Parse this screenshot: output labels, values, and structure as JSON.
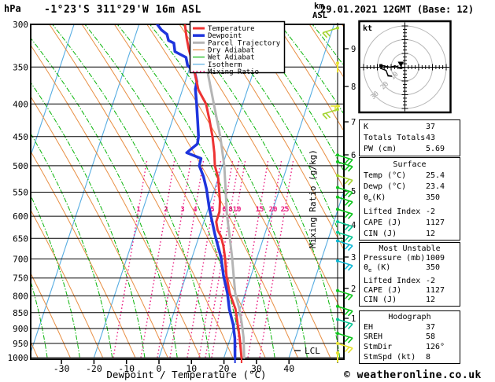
{
  "header": {
    "pressure_unit": "hPa",
    "station_title": "-1°23'S 311°29'W 16m ASL",
    "run_title": "29.01.2021 12GMT (Base: 12)",
    "km_axis_label_line1": "km",
    "km_axis_label_line2": "ASL"
  },
  "legend": {
    "items": [
      {
        "label": "Temperature",
        "color": "#ee3333",
        "width": 3,
        "dash": ""
      },
      {
        "label": "Dewpoint",
        "color": "#1f35dd",
        "width": 3.5,
        "dash": ""
      },
      {
        "label": "Parcel Trajectory",
        "color": "#b5b5b5",
        "width": 3,
        "dash": ""
      },
      {
        "label": "Dry Adiabat",
        "color": "#e88f44",
        "width": 1.2,
        "dash": ""
      },
      {
        "label": "Wet Adiabat",
        "color": "#0ab50a",
        "width": 1.2,
        "dash": ""
      },
      {
        "label": "Isotherm",
        "color": "#57ade2",
        "width": 1.2,
        "dash": ""
      },
      {
        "label": "Mixing Ratio",
        "color": "#ea1a7f",
        "width": 1.6,
        "dash": "1.5 3"
      }
    ]
  },
  "axes": {
    "pressure_ticks": [
      300,
      350,
      400,
      450,
      500,
      550,
      600,
      650,
      700,
      750,
      800,
      850,
      900,
      950,
      1000
    ],
    "temp_ticks": [
      -30,
      -20,
      -10,
      0,
      10,
      20,
      30,
      40
    ],
    "x_axis_label": "Dewpoint / Temperature (°C)",
    "km_ticks": [
      9,
      8,
      7,
      6,
      5,
      4,
      3,
      2,
      1
    ],
    "lcl_label": "LCL",
    "mixing_axis_label": "Mixing Ratio (g/kg)",
    "mixing_ratio_values": [
      1,
      2,
      3,
      4,
      5,
      6,
      8,
      10,
      15,
      20,
      25
    ],
    "hodograph_unit": "kt"
  },
  "chart_data": {
    "type": "skew-t-log-p-sounding",
    "pressure_range_hPa": [
      300,
      1000
    ],
    "temp_label_range_C": [
      -30,
      40
    ],
    "grid": "isobars every 50 hPa, skewed isotherms, dry/wet adiabats, mixing-ratio lines",
    "series": [
      {
        "name": "Temperature",
        "color": "#ee3333",
        "width": 3,
        "points_p_t": [
          [
            300,
            -25.9
          ],
          [
            315,
            -24.0
          ],
          [
            328,
            -22.2
          ],
          [
            345,
            -19.6
          ],
          [
            360,
            -17.6
          ],
          [
            380,
            -15.1
          ],
          [
            400,
            -11.3
          ],
          [
            423,
            -8.7
          ],
          [
            450,
            -6.0
          ],
          [
            477,
            -3.8
          ],
          [
            500,
            -2.3
          ],
          [
            523,
            0.0
          ],
          [
            548,
            1.6
          ],
          [
            569,
            2.9
          ],
          [
            591,
            3.8
          ],
          [
            612,
            3.8
          ],
          [
            631,
            5.1
          ],
          [
            645,
            6.7
          ],
          [
            667,
            8.4
          ],
          [
            694,
            10.0
          ],
          [
            745,
            12.5
          ],
          [
            792,
            15.2
          ],
          [
            839,
            18.6
          ],
          [
            888,
            20.9
          ],
          [
            933,
            22.9
          ],
          [
            1000,
            25.4
          ]
        ]
      },
      {
        "name": "Dewpoint",
        "color": "#1f35dd",
        "width": 3.5,
        "points_p_t": [
          [
            300,
            -34.4
          ],
          [
            306,
            -32.6
          ],
          [
            311,
            -30.4
          ],
          [
            318,
            -29.3
          ],
          [
            321,
            -27.4
          ],
          [
            331,
            -26.2
          ],
          [
            338,
            -22.2
          ],
          [
            348,
            -20.9
          ],
          [
            356,
            -18.1
          ],
          [
            369,
            -16.4
          ],
          [
            379,
            -16.1
          ],
          [
            400,
            -14.2
          ],
          [
            426,
            -12.1
          ],
          [
            450,
            -10.3
          ],
          [
            462,
            -9.9
          ],
          [
            477,
            -12.3
          ],
          [
            487,
            -7.3
          ],
          [
            500,
            -7.1
          ],
          [
            520,
            -4.7
          ],
          [
            544,
            -2.5
          ],
          [
            580,
            0.1
          ],
          [
            597,
            1.4
          ],
          [
            645,
            5.0
          ],
          [
            696,
            8.9
          ],
          [
            745,
            11.6
          ],
          [
            792,
            14.5
          ],
          [
            839,
            16.7
          ],
          [
            888,
            19.5
          ],
          [
            933,
            21.4
          ],
          [
            1000,
            23.4
          ]
        ]
      },
      {
        "name": "Parcel Trajectory",
        "color": "#b5b5b5",
        "width": 3,
        "points_p_t": [
          [
            300,
            -22.2
          ],
          [
            349,
            -15.0
          ],
          [
            400,
            -8.9
          ],
          [
            450,
            -3.6
          ],
          [
            500,
            0.6
          ],
          [
            548,
            3.6
          ],
          [
            597,
            6.4
          ],
          [
            645,
            9.4
          ],
          [
            696,
            12.3
          ],
          [
            745,
            14.7
          ],
          [
            792,
            16.9
          ],
          [
            839,
            19.8
          ],
          [
            888,
            22.2
          ],
          [
            933,
            24.1
          ],
          [
            1000,
            26.2
          ]
        ]
      }
    ],
    "surface_markers": [
      {
        "t": 25.4,
        "color": "#ee3333"
      },
      {
        "t": 23.4,
        "color": "#1f35dd"
      }
    ],
    "wind_barbs": [
      {
        "p": 304,
        "color": "#a4d431",
        "side": -1
      },
      {
        "p": 345,
        "color": "#e6e22e",
        "side": -1,
        "style": "stub"
      },
      {
        "p": 403,
        "color": "#e6e22e",
        "side": -1,
        "style": "tee"
      },
      {
        "p": 408,
        "color": "#a4d431",
        "side": -1
      },
      {
        "p": 481,
        "color": "#0fc41e",
        "side": 1
      },
      {
        "p": 493,
        "color": "#0fc41e",
        "side": 1
      },
      {
        "p": 518,
        "color": "#a4d431",
        "side": 1
      },
      {
        "p": 541,
        "color": "#0fc41e",
        "side": 1
      },
      {
        "p": 560,
        "color": "#0fc41e",
        "side": 1
      },
      {
        "p": 585,
        "color": "#0fc41e",
        "side": 1
      },
      {
        "p": 612,
        "color": "#06c593",
        "side": 1
      },
      {
        "p": 636,
        "color": "#06c593",
        "side": 1
      },
      {
        "p": 656,
        "color": "#0cb6d3",
        "side": 1
      },
      {
        "p": 705,
        "color": "#0cb6d3",
        "side": 1
      },
      {
        "p": 785,
        "color": "#0fc41e",
        "side": 1
      },
      {
        "p": 831,
        "color": "#0fc41e",
        "side": 1
      },
      {
        "p": 871,
        "color": "#06c593",
        "side": 1
      },
      {
        "p": 916,
        "color": "#0fc41e",
        "side": 1
      },
      {
        "p": 950,
        "color": "#e6e22e",
        "side": 1
      },
      {
        "p": 983,
        "color": "#e6e22e",
        "side": 1,
        "style": "stub"
      }
    ],
    "hodograph": {
      "unit": "kt",
      "ring_values_kt": [
        10,
        20,
        30
      ],
      "trace_uv_kt": [
        [
          0,
          0
        ],
        [
          -3.4,
          -0.9
        ],
        [
          -6.9,
          0.9
        ],
        [
          -10.9,
          0
        ],
        [
          -16,
          1.1
        ],
        [
          -17.4,
          -0.9
        ],
        [
          -13.7,
          -2.3
        ],
        [
          -12.3,
          -6
        ],
        [
          -9.4,
          -6.6
        ],
        [
          -12.6,
          -6.3
        ]
      ],
      "storm_marker_uv_kt": [
        -2.9,
        2.0
      ],
      "second_marker_uv_kt": [
        -17.4,
        1.1
      ]
    }
  },
  "stats": {
    "boxes": [
      {
        "title": "",
        "rows": [
          [
            "K",
            "37"
          ],
          [
            "Totals Totals",
            "43"
          ],
          [
            "PW (cm)",
            "5.69"
          ]
        ]
      },
      {
        "title": "Surface",
        "rows": [
          [
            "Temp (°C)",
            "25.4"
          ],
          [
            "Dewp (°C)",
            "23.4"
          ],
          [
            "θe(K)",
            "350"
          ],
          [
            "Lifted Index",
            "-2"
          ],
          [
            "CAPE (J)",
            "1127"
          ],
          [
            "CIN (J)",
            "12"
          ]
        ]
      },
      {
        "title": "Most Unstable",
        "rows": [
          [
            "Pressure (mb)",
            "1009"
          ],
          [
            "θe (K)",
            "350"
          ],
          [
            "Lifted Index",
            "-2"
          ],
          [
            "CAPE (J)",
            "1127"
          ],
          [
            "CIN (J)",
            "12"
          ]
        ]
      },
      {
        "title": "Hodograph",
        "rows": [
          [
            "EH",
            "37"
          ],
          [
            "SREH",
            "58"
          ],
          [
            "StmDir",
            "126°"
          ],
          [
            "StmSpd (kt)",
            "8"
          ]
        ]
      }
    ]
  },
  "footer": {
    "copyright": "© weatheronline.co.uk"
  }
}
